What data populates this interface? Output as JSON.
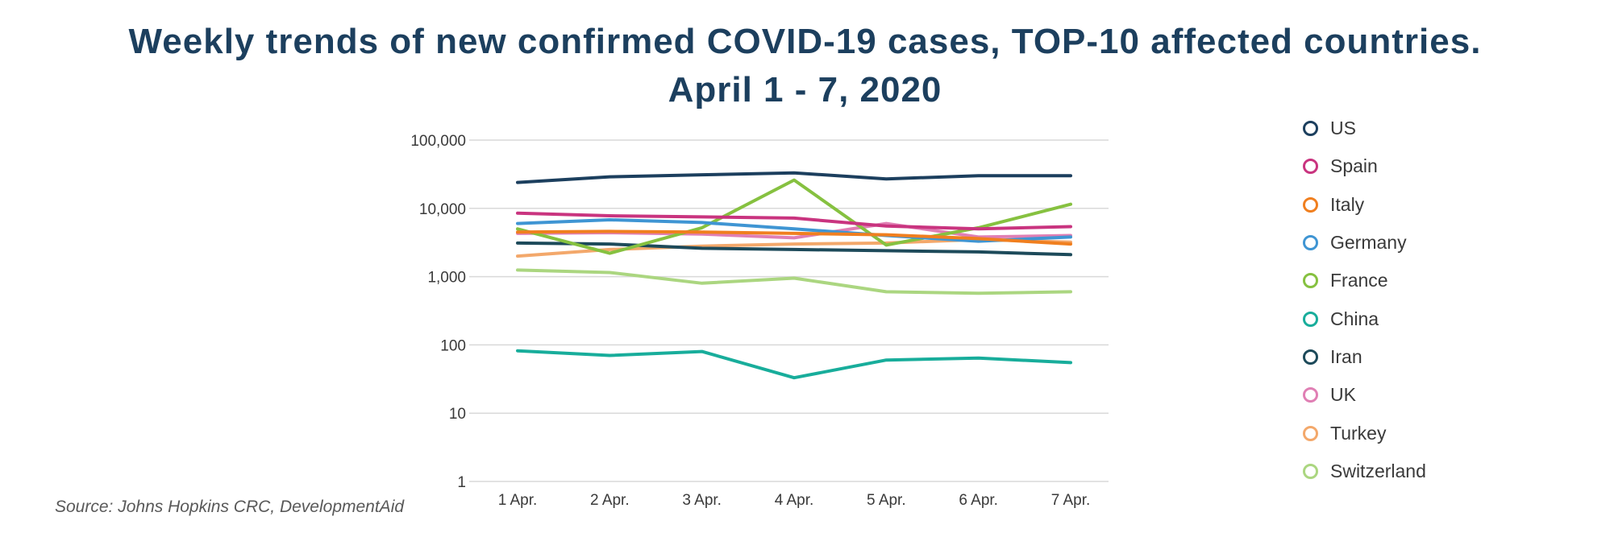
{
  "title_line1": "Weekly trends of new confirmed COVID-19 cases, TOP-10 affected countries.",
  "title_line2": "April 1 - 7, 2020",
  "source": "Source: Johns Hopkins CRC, DevelopmentAid",
  "chart_data": {
    "type": "line",
    "yscale": "log",
    "ylim": [
      1,
      100000
    ],
    "yticks": [
      1,
      10,
      100,
      1000,
      10000,
      100000
    ],
    "ytick_labels": [
      "1",
      "10",
      "100",
      "1,000",
      "10,000",
      "100,000"
    ],
    "categories": [
      "1 Apr.",
      "2 Apr.",
      "3 Apr.",
      "4 Apr.",
      "5 Apr.",
      "6 Apr.",
      "7 Apr."
    ],
    "grid": true,
    "legend_position": "right",
    "series": [
      {
        "name": "US",
        "color": "#1c3f5e",
        "values": [
          24000,
          29000,
          31000,
          33000,
          27000,
          30000,
          30000
        ]
      },
      {
        "name": "Spain",
        "color": "#c9347f",
        "values": [
          8500,
          7800,
          7500,
          7200,
          5500,
          5000,
          5400
        ]
      },
      {
        "name": "Italy",
        "color": "#f07f1f",
        "values": [
          4500,
          4600,
          4500,
          4300,
          4100,
          3600,
          3000
        ]
      },
      {
        "name": "Germany",
        "color": "#3f95d3",
        "values": [
          6000,
          6800,
          6200,
          5000,
          4000,
          3300,
          3800
        ]
      },
      {
        "name": "France",
        "color": "#86c140",
        "values": [
          5000,
          2200,
          5200,
          26000,
          2900,
          5200,
          11500
        ]
      },
      {
        "name": "China",
        "color": "#18ad9b",
        "values": [
          82,
          70,
          80,
          33,
          60,
          64,
          55
        ]
      },
      {
        "name": "Iran",
        "color": "#1d4a5a",
        "values": [
          3100,
          3000,
          2600,
          2500,
          2400,
          2300,
          2100
        ]
      },
      {
        "name": "UK",
        "color": "#e07fb4",
        "values": [
          4300,
          4400,
          4200,
          3700,
          6000,
          3800,
          4000
        ]
      },
      {
        "name": "Turkey",
        "color": "#f3a86b",
        "values": [
          2000,
          2500,
          2800,
          3000,
          3100,
          3500,
          3200
        ]
      },
      {
        "name": "Switzerland",
        "color": "#abd680",
        "values": [
          1250,
          1150,
          800,
          950,
          600,
          570,
          600
        ]
      }
    ]
  }
}
